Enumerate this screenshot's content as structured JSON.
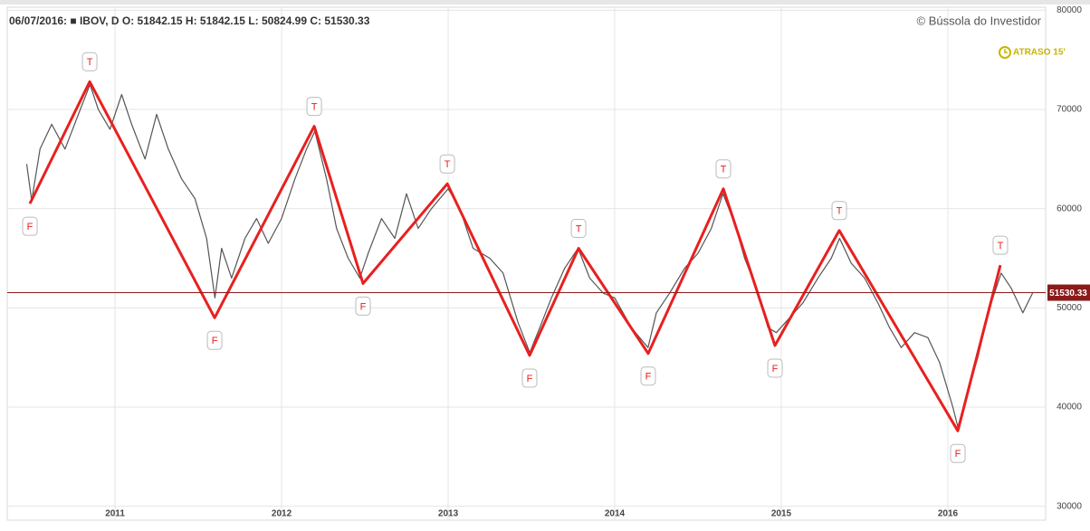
{
  "chart_data": {
    "type": "line",
    "header": "06/07/2016: ■ IBOV, D O: 51842.15  H: 51842.15  L: 50824.99  C: 51530.33",
    "copyright": "© Bússola do Investidor",
    "delay_badge": "ATRASO 15'",
    "xlim": [
      2010.353,
      2016.587
    ],
    "ylim": [
      28600,
      80300
    ],
    "xticks": [
      2011,
      2012,
      2013,
      2014,
      2015,
      2016
    ],
    "yticks": [
      30000,
      40000,
      50000,
      60000,
      70000,
      80000
    ],
    "grid": true,
    "price_line": 51530.33,
    "price_line_color": "#8b1a1a",
    "series": [
      {
        "color": "#555555",
        "x": [
          2010.47,
          2010.5,
          2010.55,
          2010.62,
          2010.7,
          2010.78,
          2010.85,
          2010.9,
          2010.97,
          2011.04,
          2011.1,
          2011.18,
          2011.25,
          2011.32,
          2011.4,
          2011.48,
          2011.55,
          2011.6,
          2011.64,
          2011.7,
          2011.78,
          2011.85,
          2011.92,
          2012.0,
          2012.08,
          2012.15,
          2012.2,
          2012.27,
          2012.33,
          2012.4,
          2012.47,
          2012.52,
          2012.6,
          2012.68,
          2012.75,
          2012.82,
          2012.9,
          2013.0,
          2013.07,
          2013.15,
          2013.25,
          2013.33,
          2013.42,
          2013.49,
          2013.55,
          2013.62,
          2013.7,
          2013.78,
          2013.85,
          2013.93,
          2014.0,
          2014.1,
          2014.2,
          2014.25,
          2014.33,
          2014.42,
          2014.5,
          2014.58,
          2014.65,
          2014.72,
          2014.78,
          2014.85,
          2014.92,
          2014.97,
          2015.05,
          2015.13,
          2015.22,
          2015.3,
          2015.35,
          2015.42,
          2015.5,
          2015.58,
          2015.65,
          2015.72,
          2015.8,
          2015.88,
          2015.95,
          2016.03,
          2016.06,
          2016.12,
          2016.18,
          2016.25,
          2016.32,
          2016.38,
          2016.45,
          2016.51
        ],
        "values": [
          64500,
          60800,
          66000,
          68500,
          66000,
          69500,
          72500,
          70000,
          68000,
          71500,
          68500,
          65000,
          69500,
          66000,
          63000,
          61000,
          57000,
          51000,
          56000,
          53000,
          57000,
          59000,
          56500,
          59000,
          63000,
          66000,
          67800,
          63000,
          58000,
          55000,
          53000,
          55500,
          59000,
          57000,
          61500,
          58000,
          60000,
          62000,
          60000,
          56000,
          55000,
          53500,
          48500,
          45500,
          48000,
          51000,
          54000,
          56000,
          53000,
          51500,
          51000,
          48000,
          46000,
          49500,
          51500,
          54000,
          55500,
          58000,
          61500,
          58500,
          55000,
          52000,
          48000,
          47500,
          49000,
          50500,
          53000,
          55000,
          57000,
          54500,
          53000,
          50500,
          48000,
          46000,
          47500,
          47000,
          44500,
          40000,
          38000,
          41500,
          45000,
          50000,
          53500,
          52000,
          49500,
          51530
        ]
      },
      {
        "color": "#e8201f",
        "x": [
          2010.489,
          2010.848,
          2011.598,
          2012.196,
          2012.489,
          2012.995,
          2013.489,
          2013.783,
          2014.201,
          2014.652,
          2014.962,
          2015.348,
          2016.06,
          2016.315
        ],
        "values": [
          60500,
          72800,
          49000,
          68300,
          52450,
          62500,
          45200,
          56000,
          45400,
          62000,
          46200,
          57800,
          37600,
          54300
        ],
        "point_labels": [
          "F",
          "T",
          "F",
          "T",
          "F",
          "T",
          "F",
          "T",
          "F",
          "T",
          "F",
          "T",
          "F",
          "T"
        ]
      }
    ]
  }
}
